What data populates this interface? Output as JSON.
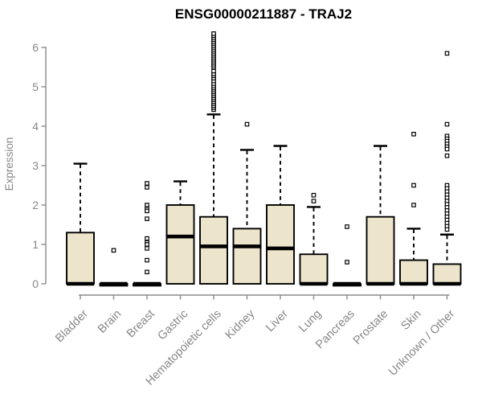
{
  "header": {
    "title": "ENSG00000211887 - TRAJ2"
  },
  "styles": {
    "background": "#FFFFFF",
    "title_color": "#000000",
    "axis_color": "#8A8A8A",
    "label_color": "#878787",
    "box_fill": "#EDE5CB",
    "box_stroke": "#000000"
  },
  "chart_data": {
    "type": "boxplot",
    "title": "ENSG00000211887 - TRAJ2",
    "xlabel": "",
    "ylabel": "Expression",
    "ylim": [
      0,
      6.4
    ],
    "yticks": [
      0,
      1,
      2,
      3,
      4,
      5,
      6
    ],
    "grid": false,
    "legend": null,
    "categories": [
      "Bladder",
      "Brain",
      "Breast",
      "Gastric",
      "Hematopoietic cells",
      "Kidney",
      "Liver",
      "Lung",
      "Pancreas",
      "Prostate",
      "Skin",
      "Unknown / Other"
    ],
    "boxes": [
      {
        "category": "Bladder",
        "q1": 0,
        "median": 0,
        "q3": 1.3,
        "whisker_low": 0,
        "whisker_high": 3.05,
        "outliers": []
      },
      {
        "category": "Brain",
        "q1": 0,
        "median": 0,
        "q3": 0,
        "whisker_low": 0,
        "whisker_high": 0,
        "outliers": [
          0.85
        ]
      },
      {
        "category": "Breast",
        "q1": 0,
        "median": 0,
        "q3": 0,
        "whisker_low": 0,
        "whisker_high": 0,
        "outliers": [
          2.55,
          2.45,
          2.0,
          1.9,
          1.85,
          1.65,
          1.15,
          1.05,
          1.0,
          0.9,
          0.6,
          0.3
        ]
      },
      {
        "category": "Gastric",
        "q1": 0,
        "median": 1.2,
        "q3": 2.0,
        "whisker_low": 0,
        "whisker_high": 2.6,
        "outliers": []
      },
      {
        "category": "Hematopoietic cells",
        "q1": 0,
        "median": 0.95,
        "q3": 1.7,
        "whisker_low": 0,
        "whisker_high": 4.3,
        "outliers": [
          4.42,
          4.47,
          4.52,
          4.57,
          4.62,
          4.67,
          4.72,
          4.77,
          4.82,
          4.87,
          4.92,
          4.97,
          5.02,
          5.08,
          5.15,
          5.22,
          5.28,
          5.33,
          5.4,
          5.5,
          5.55,
          5.6,
          5.65,
          5.7,
          5.75,
          5.8,
          5.85,
          5.9,
          5.95,
          6.0,
          6.05,
          6.1,
          6.15,
          6.2,
          6.25,
          6.3,
          6.35
        ]
      },
      {
        "category": "Kidney",
        "q1": 0,
        "median": 0.95,
        "q3": 1.4,
        "whisker_low": 0,
        "whisker_high": 3.4,
        "outliers": [
          4.05
        ]
      },
      {
        "category": "Liver",
        "q1": 0,
        "median": 0.9,
        "q3": 2.0,
        "whisker_low": 0,
        "whisker_high": 3.5,
        "outliers": []
      },
      {
        "category": "Lung",
        "q1": 0,
        "median": 0,
        "q3": 0.75,
        "whisker_low": 0,
        "whisker_high": 1.95,
        "outliers": [
          2.25,
          2.1
        ]
      },
      {
        "category": "Pancreas",
        "q1": 0,
        "median": 0,
        "q3": 0,
        "whisker_low": 0,
        "whisker_high": 0,
        "outliers": [
          1.45,
          0.55
        ]
      },
      {
        "category": "Prostate",
        "q1": 0,
        "median": 0,
        "q3": 1.7,
        "whisker_low": 0,
        "whisker_high": 3.5,
        "outliers": []
      },
      {
        "category": "Skin",
        "q1": 0,
        "median": 0,
        "q3": 0.6,
        "whisker_low": 0,
        "whisker_high": 1.4,
        "outliers": [
          3.8,
          2.5,
          2.0
        ]
      },
      {
        "category": "Unknown / Other",
        "q1": 0,
        "median": 0,
        "q3": 0.5,
        "whisker_low": 0,
        "whisker_high": 1.25,
        "outliers": [
          5.85,
          4.05,
          3.75,
          3.68,
          3.62,
          3.55,
          3.48,
          3.42,
          3.25,
          2.5,
          2.42,
          2.34,
          2.26,
          2.18,
          2.1,
          2.02,
          1.94,
          1.86,
          1.78,
          1.7,
          1.62,
          1.54,
          1.46,
          1.38
        ]
      }
    ]
  }
}
